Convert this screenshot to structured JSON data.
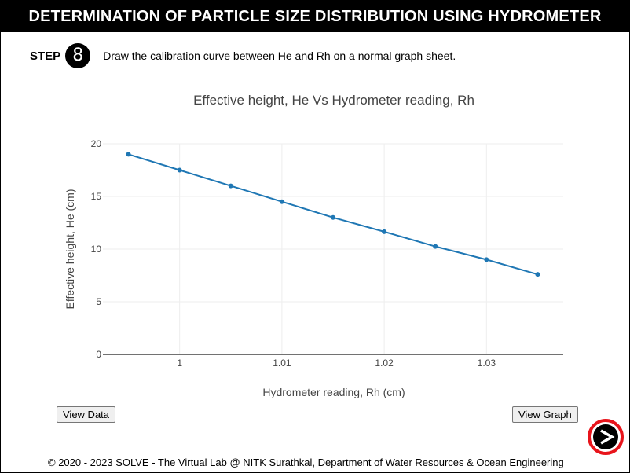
{
  "header": {
    "title": "DETERMINATION OF PARTICLE SIZE DISTRIBUTION USING HYDROMETER"
  },
  "step": {
    "label": "STEP",
    "number": "8",
    "instruction": "Draw the calibration curve between He and Rh on a normal graph sheet."
  },
  "chart_data": {
    "type": "line",
    "title": "Effective height, He Vs Hydrometer reading, Rh",
    "xlabel": "Hydrometer reading, Rh (cm)",
    "ylabel": "Effective height, He (cm)",
    "xlim": [
      0.9925,
      1.0375
    ],
    "ylim": [
      0,
      20
    ],
    "xticks": [
      1,
      1.01,
      1.02,
      1.03
    ],
    "xtick_labels": [
      "1",
      "1.01",
      "1.02",
      "1.03"
    ],
    "yticks": [
      0,
      5,
      10,
      15,
      20
    ],
    "ytick_labels": [
      "0",
      "5",
      "10",
      "15",
      "20"
    ],
    "grid": true,
    "line_color": "#1f77b4",
    "series": [
      {
        "name": "He",
        "x": [
          0.995,
          1.0,
          1.005,
          1.01,
          1.015,
          1.02,
          1.025,
          1.03,
          1.035
        ],
        "y": [
          19.0,
          17.5,
          16.0,
          14.5,
          13.0,
          11.65,
          10.25,
          9.0,
          7.6
        ]
      }
    ]
  },
  "buttons": {
    "view_data": "View Data",
    "view_graph": "View Graph",
    "next_icon": "next-arrow-icon"
  },
  "footer": {
    "text": "© 2020 - 2023 SOLVE - The Virtual Lab @ NITK Surathkal, Department of Water Resources & Ocean Engineering"
  }
}
